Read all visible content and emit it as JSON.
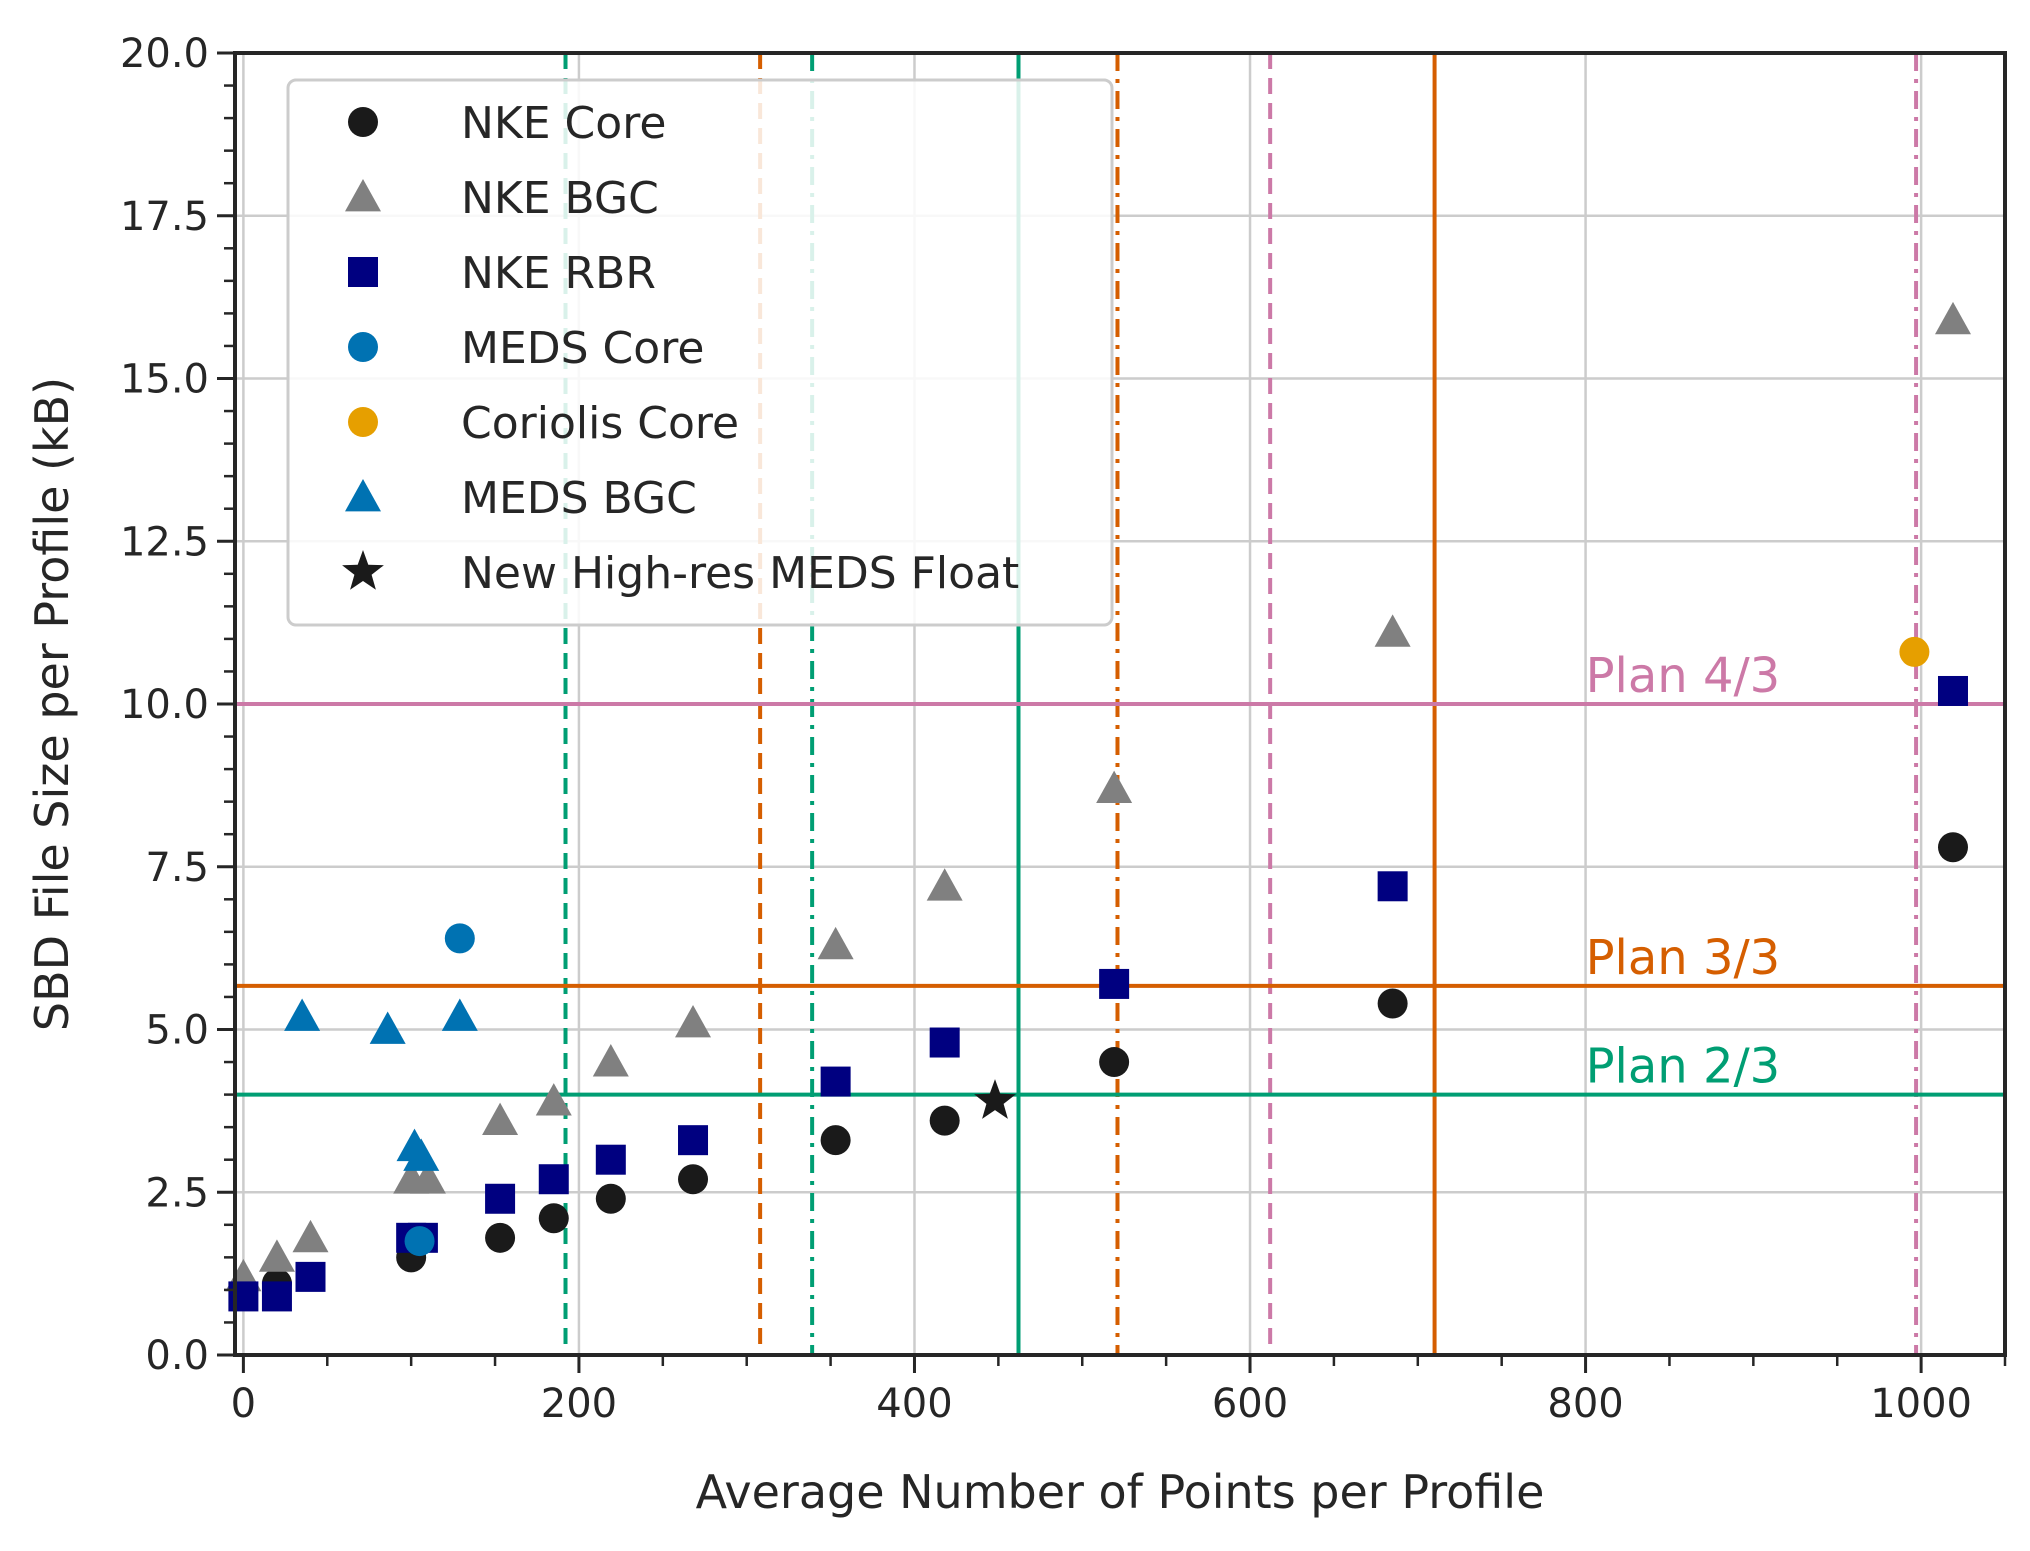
{
  "chart_data": {
    "type": "scatter",
    "title": "",
    "xlabel": "Average Number of Points per Profile",
    "ylabel": "SBD File Size per Profile (kB)",
    "xlim": [
      -5,
      1050
    ],
    "ylim": [
      0,
      20
    ],
    "xticks": [
      0,
      200,
      400,
      600,
      800,
      1000
    ],
    "xtick_labels": [
      "0",
      "200",
      "400",
      "600",
      "800",
      "1000"
    ],
    "yticks": [
      0,
      2.5,
      5,
      7.5,
      10,
      12.5,
      15,
      17.5,
      20
    ],
    "ytick_labels": [
      "0.0",
      "2.5",
      "5.0",
      "7.5",
      "10.0",
      "12.5",
      "15.0",
      "17.5",
      "20.0"
    ],
    "grid": true,
    "legend_position": "top-left",
    "series": [
      {
        "name": "NKE Core",
        "marker": "circle",
        "color": "#1a1a1a",
        "x": [
          0,
          20,
          100,
          153,
          185,
          219,
          268,
          353,
          418,
          519,
          685,
          1019
        ],
        "y": [
          1.0,
          1.1,
          1.5,
          1.8,
          2.1,
          2.4,
          2.7,
          3.3,
          3.6,
          4.5,
          5.4,
          7.8
        ]
      },
      {
        "name": "NKE BGC",
        "marker": "triangle",
        "color": "#808080",
        "x": [
          0,
          20,
          40,
          100,
          110,
          153,
          185,
          219,
          268,
          353,
          418,
          519,
          685,
          1019
        ],
        "y": [
          1.2,
          1.5,
          1.8,
          2.7,
          2.7,
          3.6,
          3.9,
          4.5,
          5.1,
          6.3,
          7.2,
          8.7,
          11.1,
          15.9
        ]
      },
      {
        "name": "NKE RBR",
        "marker": "square",
        "color": "#000080",
        "x": [
          0,
          20,
          40,
          100,
          107,
          153,
          185,
          219,
          268,
          353,
          418,
          519,
          685,
          1019
        ],
        "y": [
          0.9,
          0.9,
          1.2,
          1.8,
          1.8,
          2.4,
          2.7,
          3.0,
          3.3,
          4.2,
          4.8,
          5.7,
          7.2,
          10.2
        ]
      },
      {
        "name": "MEDS Core",
        "marker": "circle",
        "color": "#0072b2",
        "x": [
          105,
          129
        ],
        "y": [
          1.75,
          6.4
        ]
      },
      {
        "name": "Coriolis Core",
        "marker": "circle",
        "color": "#e69f00",
        "x": [
          996
        ],
        "y": [
          10.8
        ]
      },
      {
        "name": "MEDS BGC",
        "marker": "triangle",
        "color": "#0072b2",
        "x": [
          35,
          86,
          102,
          106,
          129
        ],
        "y": [
          5.2,
          5.0,
          3.2,
          3.05,
          5.2
        ]
      },
      {
        "name": "New High-res MEDS Float",
        "marker": "star",
        "color": "#1a1a1a",
        "x": [
          448
        ],
        "y": [
          3.9
        ]
      }
    ],
    "horizontal_lines": [
      {
        "y": 10.0,
        "color": "#cc79a7",
        "style": "solid",
        "label": "Plan 4/3"
      },
      {
        "y": 5.67,
        "color": "#d55e00",
        "style": "solid",
        "label": "Plan 3/3"
      },
      {
        "y": 4.0,
        "color": "#009e73",
        "style": "solid",
        "label": "Plan 2/3"
      }
    ],
    "vertical_lines": [
      {
        "x": 192,
        "color": "#009e73",
        "style": "dashed"
      },
      {
        "x": 308,
        "color": "#d55e00",
        "style": "dashed"
      },
      {
        "x": 339,
        "color": "#009e73",
        "style": "dashdot"
      },
      {
        "x": 462,
        "color": "#009e73",
        "style": "solid"
      },
      {
        "x": 521,
        "color": "#d55e00",
        "style": "dashdot"
      },
      {
        "x": 612,
        "color": "#cc79a7",
        "style": "dashed"
      },
      {
        "x": 710,
        "color": "#d55e00",
        "style": "solid"
      },
      {
        "x": 997,
        "color": "#cc79a7",
        "style": "dashdot"
      }
    ],
    "plan_label_x": 800
  }
}
